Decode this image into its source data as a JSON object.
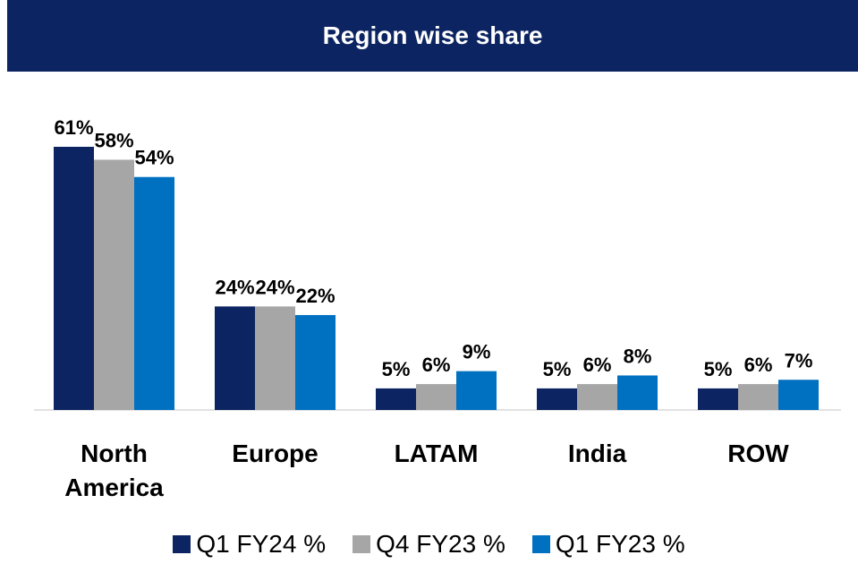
{
  "chart_data": {
    "type": "bar",
    "title": "Region wise share",
    "categories": [
      "North America",
      "Europe",
      "LATAM",
      "India",
      "ROW"
    ],
    "series": [
      {
        "name": "Q1 FY24 %",
        "color": "#0c2461",
        "values": [
          61,
          24,
          5,
          5,
          5
        ],
        "value_labels": [
          "61%",
          "24%",
          "5%",
          "5%",
          "5%"
        ]
      },
      {
        "name": "Q4 FY23 %",
        "color": "#a6a6a6",
        "values": [
          58,
          24,
          6,
          6,
          6
        ],
        "value_labels": [
          "58%",
          "24%",
          "6%",
          "6%",
          "6%"
        ]
      },
      {
        "name": "Q1 FY23 %",
        "color": "#0070c0",
        "values": [
          54,
          22,
          9,
          8,
          7
        ],
        "value_labels": [
          "54%",
          "22%",
          "9%",
          "8%",
          "7%"
        ]
      }
    ]
  }
}
